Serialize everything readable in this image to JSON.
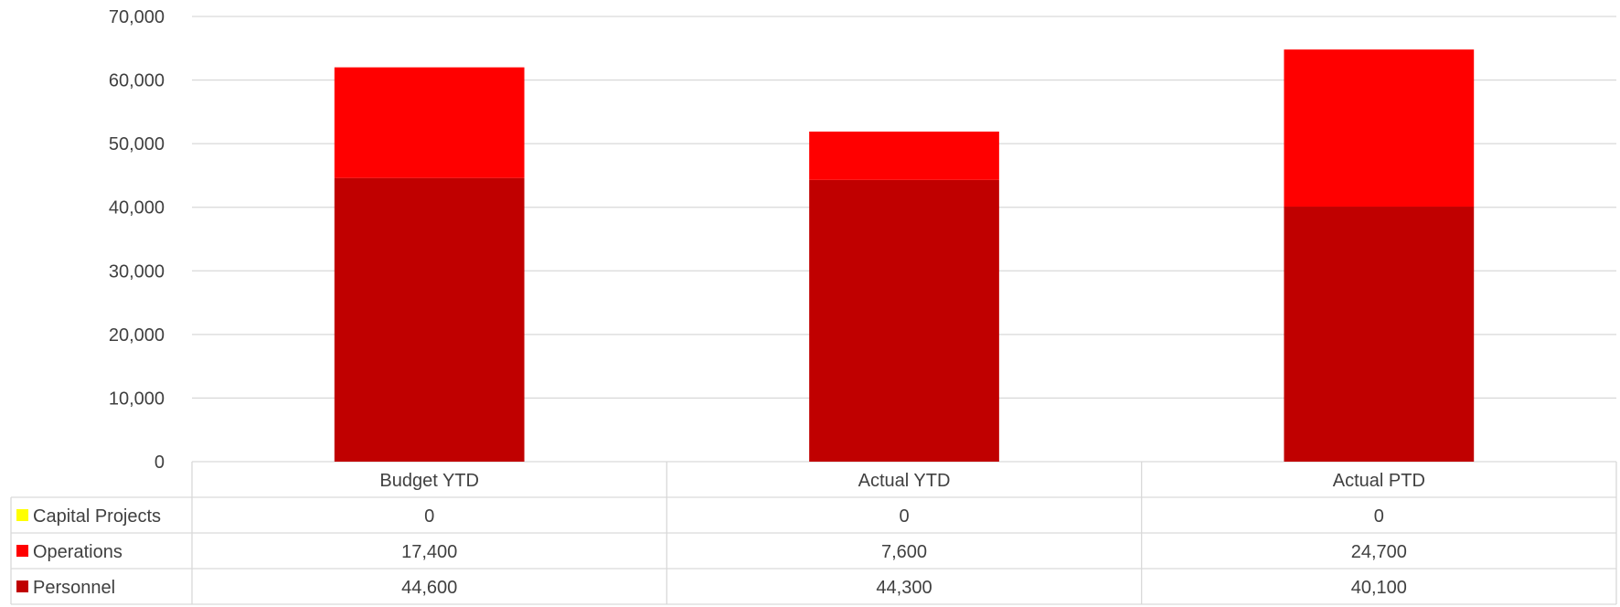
{
  "chart_data": {
    "type": "bar",
    "stacked": true,
    "categories": [
      "Budget YTD",
      "Actual YTD",
      "Actual PTD"
    ],
    "series": [
      {
        "name": "Capital Projects",
        "color": "#FFFF00",
        "values": [
          0,
          0,
          0
        ],
        "labels": [
          "0",
          "0",
          "0"
        ]
      },
      {
        "name": "Operations",
        "color": "#FF0000",
        "values": [
          17400,
          7600,
          24700
        ],
        "labels": [
          "17,400",
          "7,600",
          "24,700"
        ]
      },
      {
        "name": "Personnel",
        "color": "#C00000",
        "values": [
          44600,
          44300,
          40100
        ],
        "labels": [
          "44,600",
          "44,300",
          "40,100"
        ]
      }
    ],
    "stack_order": [
      "Personnel",
      "Operations",
      "Capital Projects"
    ],
    "ylim": [
      0,
      70000
    ],
    "yticks": [
      0,
      10000,
      20000,
      30000,
      40000,
      50000,
      60000,
      70000
    ],
    "ytick_labels": [
      "0",
      "10,000",
      "20,000",
      "30,000",
      "40,000",
      "50,000",
      "60,000",
      "70,000"
    ],
    "grid": true,
    "legend": "data-table-left"
  }
}
